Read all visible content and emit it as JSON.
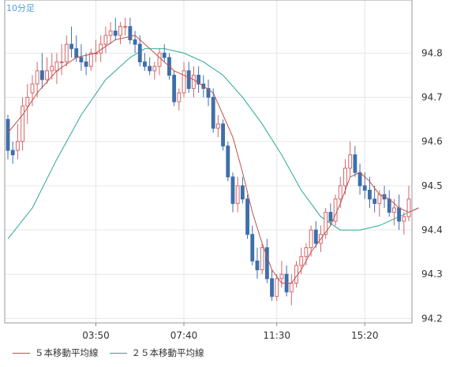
{
  "chart_data": {
    "type": "candlestick",
    "timeframe_label": "10分足",
    "x_tick_labels": [
      "03:50",
      "07:40",
      "11:30",
      "15:20"
    ],
    "y_tick_labels": [
      "94.2",
      "94.3",
      "94.4",
      "94.5",
      "94.6",
      "94.7",
      "94.8"
    ],
    "ylim": [
      94.19,
      94.92
    ],
    "grid": true,
    "colors": {
      "up": "#d4666a",
      "down": "#3f6faa",
      "ma5": "#c0504d",
      "ma25": "#2aa896",
      "grid": "#e6e6e6",
      "label": "#4aa3d8"
    },
    "series": [
      {
        "name": "５本移動平均線",
        "color": "#c0504d"
      },
      {
        "name": "２５本移動平均線",
        "color": "#2aa896"
      }
    ],
    "candles": [
      [
        94.65,
        94.66,
        94.56,
        94.58
      ],
      [
        94.58,
        94.6,
        94.55,
        94.57
      ],
      [
        94.58,
        94.64,
        94.56,
        94.6
      ],
      [
        94.6,
        94.7,
        94.58,
        94.68
      ],
      [
        94.68,
        94.73,
        94.64,
        94.7
      ],
      [
        94.71,
        94.75,
        94.68,
        94.73
      ],
      [
        94.73,
        94.78,
        94.7,
        94.76
      ],
      [
        94.76,
        94.8,
        94.72,
        94.74
      ],
      [
        94.74,
        94.79,
        94.73,
        94.76
      ],
      [
        94.76,
        94.8,
        94.74,
        94.77
      ],
      [
        94.76,
        94.8,
        94.73,
        94.78
      ],
      [
        94.78,
        94.82,
        94.75,
        94.78
      ],
      [
        94.78,
        94.84,
        94.77,
        94.82
      ],
      [
        94.82,
        94.86,
        94.79,
        94.81
      ],
      [
        94.81,
        94.84,
        94.78,
        94.79
      ],
      [
        94.79,
        94.82,
        94.76,
        94.78
      ],
      [
        94.78,
        94.8,
        94.75,
        94.77
      ],
      [
        94.77,
        94.81,
        94.76,
        94.8
      ],
      [
        94.8,
        94.83,
        94.78,
        94.8
      ],
      [
        94.8,
        94.84,
        94.78,
        94.82
      ],
      [
        94.82,
        94.86,
        94.8,
        94.84
      ],
      [
        94.84,
        94.87,
        94.82,
        94.85
      ],
      [
        94.85,
        94.88,
        94.83,
        94.84
      ],
      [
        94.84,
        94.87,
        94.82,
        94.86
      ],
      [
        94.86,
        94.88,
        94.84,
        94.86
      ],
      [
        94.86,
        94.88,
        94.82,
        94.83
      ],
      [
        94.83,
        94.85,
        94.8,
        94.82
      ],
      [
        94.82,
        94.84,
        94.77,
        94.78
      ],
      [
        94.78,
        94.8,
        94.76,
        94.77
      ],
      [
        94.77,
        94.79,
        94.75,
        94.76
      ],
      [
        94.76,
        94.78,
        94.74,
        94.77
      ],
      [
        94.77,
        94.81,
        94.75,
        94.8
      ],
      [
        94.8,
        94.82,
        94.78,
        94.79
      ],
      [
        94.79,
        94.8,
        94.74,
        94.75
      ],
      [
        94.75,
        94.76,
        94.68,
        94.69
      ],
      [
        94.69,
        94.72,
        94.67,
        94.71
      ],
      [
        94.71,
        94.78,
        94.7,
        94.76
      ],
      [
        94.76,
        94.78,
        94.71,
        94.72
      ],
      [
        94.72,
        94.77,
        94.7,
        94.75
      ],
      [
        94.75,
        94.77,
        94.71,
        94.73
      ],
      [
        94.73,
        94.75,
        94.7,
        94.72
      ],
      [
        94.72,
        94.74,
        94.68,
        94.7
      ],
      [
        94.7,
        94.72,
        94.62,
        94.63
      ],
      [
        94.63,
        94.66,
        94.61,
        94.64
      ],
      [
        94.64,
        94.65,
        94.58,
        94.59
      ],
      [
        94.59,
        94.6,
        94.51,
        94.52
      ],
      [
        94.52,
        94.53,
        94.44,
        94.46
      ],
      [
        94.46,
        94.52,
        94.44,
        94.5
      ],
      [
        94.5,
        94.52,
        94.46,
        94.47
      ],
      [
        94.47,
        94.48,
        94.38,
        94.39
      ],
      [
        94.39,
        94.41,
        94.32,
        94.33
      ],
      [
        94.33,
        94.36,
        94.29,
        94.31
      ],
      [
        94.31,
        94.37,
        94.3,
        94.36
      ],
      [
        94.36,
        94.38,
        94.28,
        94.29
      ],
      [
        94.29,
        94.31,
        94.24,
        94.25
      ],
      [
        94.25,
        94.3,
        94.24,
        94.29
      ],
      [
        94.29,
        94.33,
        94.27,
        94.3
      ],
      [
        94.3,
        94.32,
        94.25,
        94.26
      ],
      [
        94.26,
        94.3,
        94.23,
        94.28
      ],
      [
        94.28,
        94.33,
        94.27,
        94.32
      ],
      [
        94.32,
        94.36,
        94.3,
        94.34
      ],
      [
        94.34,
        94.37,
        94.32,
        94.36
      ],
      [
        94.36,
        94.41,
        94.34,
        94.4
      ],
      [
        94.4,
        94.42,
        94.36,
        94.37
      ],
      [
        94.37,
        94.41,
        94.35,
        94.39
      ],
      [
        94.39,
        94.45,
        94.38,
        94.44
      ],
      [
        94.44,
        94.46,
        94.41,
        94.42
      ],
      [
        94.42,
        94.48,
        94.41,
        94.47
      ],
      [
        94.47,
        94.52,
        94.45,
        94.5
      ],
      [
        94.5,
        94.56,
        94.48,
        94.54
      ],
      [
        94.54,
        94.6,
        94.52,
        94.57
      ],
      [
        94.57,
        94.59,
        94.52,
        94.53
      ],
      [
        94.53,
        94.55,
        94.48,
        94.5
      ],
      [
        94.5,
        94.53,
        94.47,
        94.49
      ],
      [
        94.49,
        94.52,
        94.45,
        94.47
      ],
      [
        94.47,
        94.5,
        94.44,
        94.46
      ],
      [
        94.46,
        94.49,
        94.43,
        94.48
      ],
      [
        94.48,
        94.5,
        94.45,
        94.47
      ],
      [
        94.47,
        94.49,
        94.43,
        94.44
      ],
      [
        94.44,
        94.47,
        94.41,
        94.45
      ],
      [
        94.45,
        94.48,
        94.4,
        94.42
      ],
      [
        94.42,
        94.44,
        94.39,
        94.43
      ],
      [
        94.43,
        94.5,
        94.42,
        94.47
      ]
    ],
    "ma5": [
      [
        0,
        94.62
      ],
      [
        3,
        94.66
      ],
      [
        6,
        94.71
      ],
      [
        10,
        94.76
      ],
      [
        14,
        94.79
      ],
      [
        18,
        94.8
      ],
      [
        22,
        94.83
      ],
      [
        26,
        94.84
      ],
      [
        30,
        94.8
      ],
      [
        34,
        94.76
      ],
      [
        38,
        94.74
      ],
      [
        42,
        94.71
      ],
      [
        46,
        94.61
      ],
      [
        48,
        94.53
      ],
      [
        50,
        94.44
      ],
      [
        52,
        94.37
      ],
      [
        54,
        94.31
      ],
      [
        56,
        94.28
      ],
      [
        58,
        94.28
      ],
      [
        60,
        94.31
      ],
      [
        62,
        94.35
      ],
      [
        64,
        94.38
      ],
      [
        66,
        94.41
      ],
      [
        68,
        94.46
      ],
      [
        70,
        94.52
      ],
      [
        72,
        94.53
      ],
      [
        74,
        94.51
      ],
      [
        76,
        94.48
      ],
      [
        78,
        94.47
      ],
      [
        80,
        94.45
      ],
      [
        82,
        94.44
      ],
      [
        84,
        94.45
      ]
    ],
    "ma25": [
      [
        0,
        94.38
      ],
      [
        5,
        94.45
      ],
      [
        10,
        94.56
      ],
      [
        15,
        94.66
      ],
      [
        20,
        94.74
      ],
      [
        25,
        94.79
      ],
      [
        28,
        94.81
      ],
      [
        32,
        94.81
      ],
      [
        36,
        94.8
      ],
      [
        40,
        94.78
      ],
      [
        44,
        94.75
      ],
      [
        48,
        94.7
      ],
      [
        52,
        94.64
      ],
      [
        56,
        94.57
      ],
      [
        60,
        94.49
      ],
      [
        64,
        94.43
      ],
      [
        68,
        94.4
      ],
      [
        72,
        94.4
      ],
      [
        76,
        94.41
      ],
      [
        80,
        94.43
      ],
      [
        84,
        94.45
      ]
    ]
  }
}
